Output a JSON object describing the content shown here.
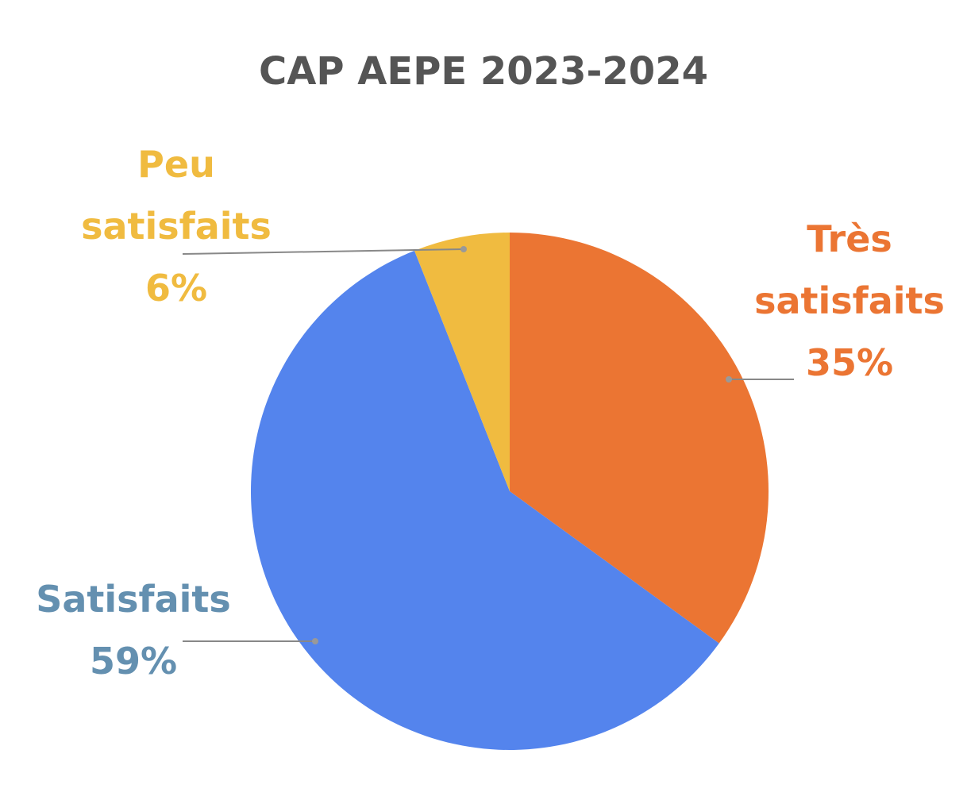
{
  "chart_data": {
    "type": "pie",
    "title": "CAP AEPE 2023-2024",
    "categories": [
      "Très satisfaits",
      "Satisfaits",
      "Peu satisfaits"
    ],
    "values": [
      35,
      59,
      6
    ],
    "value_labels": [
      "35%",
      "59%",
      "6%"
    ],
    "colors": [
      "#eb7533",
      "#5484ed",
      "#f0bb40"
    ],
    "label_colors": [
      "#eb7533",
      "#6490b0",
      "#f0bb40"
    ]
  }
}
